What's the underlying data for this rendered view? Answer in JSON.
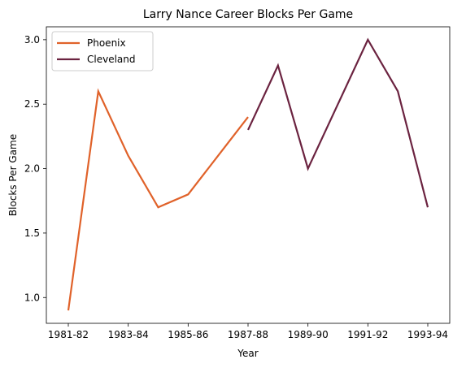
{
  "chart_data": {
    "type": "line",
    "title": "Larry Nance Career Blocks Per Game",
    "xlabel": "Year",
    "ylabel": "Blocks Per Game",
    "x_categories": [
      "1981-82",
      "1982-83",
      "1983-84",
      "1984-85",
      "1985-86",
      "1986-87",
      "1987-88",
      "1988-89",
      "1989-90",
      "1990-91",
      "1991-92",
      "1992-93",
      "1993-94"
    ],
    "x_tick_labels": [
      "1981-82",
      "1983-84",
      "1985-86",
      "1987-88",
      "1989-90",
      "1991-92",
      "1993-94"
    ],
    "y_ticks": [
      "1.0",
      "1.5",
      "2.0",
      "2.5",
      "3.0"
    ],
    "ylim": [
      0.8,
      3.1
    ],
    "grid": false,
    "legend": "top-left",
    "series": [
      {
        "name": "Phoenix",
        "color": "#e0622a",
        "x": [
          "1981-82",
          "1982-83",
          "1983-84",
          "1984-85",
          "1985-86",
          "1986-87",
          "1987-88"
        ],
        "values": [
          0.9,
          2.6,
          2.1,
          1.7,
          1.8,
          2.1,
          2.4
        ]
      },
      {
        "name": "Cleveland",
        "color": "#6b2340",
        "x": [
          "1987-88",
          "1988-89",
          "1989-90",
          "1990-91",
          "1991-92",
          "1992-93",
          "1993-94"
        ],
        "values": [
          2.3,
          2.8,
          2.0,
          2.5,
          3.0,
          2.6,
          1.7
        ]
      }
    ]
  }
}
